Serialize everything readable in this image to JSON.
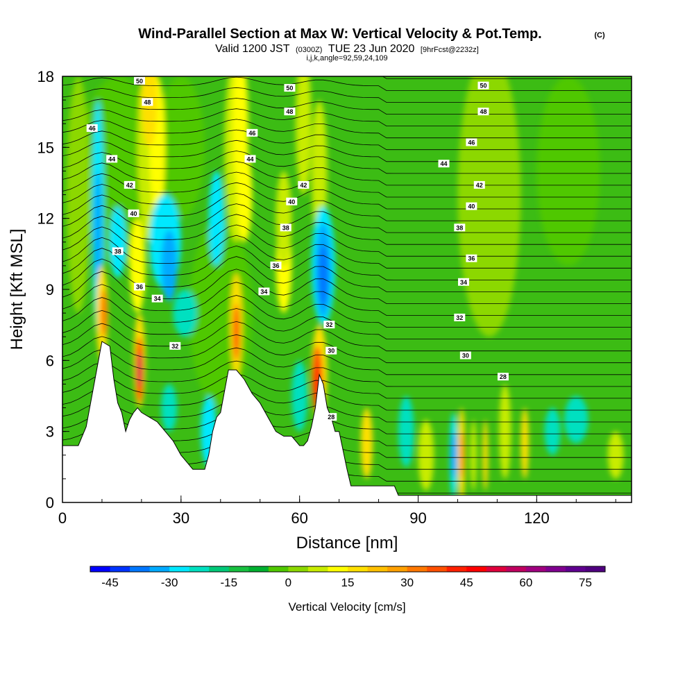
{
  "title": {
    "main": "Wind-Parallel Section at Max W: Vertical Velocity & Pot.Temp.",
    "copyright": "(C)",
    "valid_pre": "Valid 1200 JST",
    "valid_utc": "(0300Z)",
    "valid_post": "TUE 23 Jun 2020",
    "fcst": "[9hrFcst@2232z]",
    "indices": "i,j,k,angle=92,59,24,109"
  },
  "chart_data": {
    "type": "heatmap",
    "title": "Wind-Parallel Section at Max W: Vertical Velocity & Pot.Temp.",
    "xlabel": "Distance [nm]",
    "ylabel": "Height [Kft MSL]",
    "xlim": [
      0,
      144
    ],
    "ylim": [
      0,
      18
    ],
    "xticks": [
      0,
      30,
      60,
      90,
      120
    ],
    "yticks": [
      0,
      3,
      6,
      9,
      12,
      15,
      18
    ],
    "colorbar": {
      "label": "Vertical Velocity [cm/s]",
      "tick_labels": [
        "-45",
        "-30",
        "-15",
        "0",
        "15",
        "30",
        "45",
        "60",
        "75"
      ],
      "tick_values": [
        -45,
        -30,
        -15,
        0,
        15,
        30,
        45,
        60,
        75
      ],
      "range": [
        -50,
        80
      ],
      "colors": [
        "#0000ff",
        "#0033ff",
        "#0077ff",
        "#00aaff",
        "#00e8ff",
        "#00e0c0",
        "#00c878",
        "#18c040",
        "#00b030",
        "#50c800",
        "#8cd800",
        "#c8ec00",
        "#ffff00",
        "#ffe000",
        "#ffc000",
        "#ffa000",
        "#ff7800",
        "#ff5000",
        "#ff2000",
        "#ff0000",
        "#e0003c",
        "#c00060",
        "#a00080",
        "#800090",
        "#600090",
        "#500080"
      ]
    },
    "terrain": [
      [
        0,
        2.4
      ],
      [
        4,
        2.4
      ],
      [
        6,
        3.2
      ],
      [
        8,
        5.0
      ],
      [
        10,
        6.8
      ],
      [
        12,
        6.6
      ],
      [
        13,
        5.2
      ],
      [
        14,
        4.2
      ],
      [
        15,
        3.8
      ],
      [
        16,
        3.0
      ],
      [
        17,
        3.5
      ],
      [
        18,
        3.8
      ],
      [
        19,
        4.0
      ],
      [
        20,
        3.8
      ],
      [
        22,
        3.6
      ],
      [
        24,
        3.4
      ],
      [
        26,
        3.0
      ],
      [
        28,
        2.6
      ],
      [
        30,
        2.0
      ],
      [
        32,
        1.6
      ],
      [
        33,
        1.4
      ],
      [
        36,
        1.4
      ],
      [
        37,
        2.0
      ],
      [
        38,
        3.0
      ],
      [
        39,
        3.6
      ],
      [
        40,
        3.8
      ],
      [
        42,
        5.6
      ],
      [
        44,
        5.6
      ],
      [
        46,
        5.2
      ],
      [
        48,
        4.6
      ],
      [
        50,
        4.2
      ],
      [
        52,
        3.6
      ],
      [
        54,
        3.0
      ],
      [
        56,
        2.8
      ],
      [
        58,
        2.8
      ],
      [
        60,
        2.4
      ],
      [
        61,
        2.4
      ],
      [
        62,
        2.6
      ],
      [
        63,
        3.2
      ],
      [
        64,
        4.0
      ],
      [
        65,
        5.4
      ],
      [
        66,
        5.0
      ],
      [
        67,
        4.0
      ],
      [
        68,
        3.6
      ],
      [
        69,
        3.0
      ],
      [
        70,
        3.0
      ],
      [
        72,
        1.4
      ],
      [
        73,
        0.7
      ],
      [
        75,
        0.7
      ],
      [
        84,
        0.7
      ],
      [
        85,
        0.3
      ],
      [
        144,
        0.3
      ]
    ],
    "theta_labels": [
      {
        "text": "50",
        "x": 19.5,
        "y": 17.8
      },
      {
        "text": "50",
        "x": 57.5,
        "y": 17.5
      },
      {
        "text": "50",
        "x": 106.5,
        "y": 17.6
      },
      {
        "text": "48",
        "x": 21.5,
        "y": 16.9
      },
      {
        "text": "48",
        "x": 57.5,
        "y": 16.5
      },
      {
        "text": "48",
        "x": 106.5,
        "y": 16.5
      },
      {
        "text": "46",
        "x": 7.5,
        "y": 15.8
      },
      {
        "text": "46",
        "x": 48.0,
        "y": 15.6
      },
      {
        "text": "46",
        "x": 103.5,
        "y": 15.2
      },
      {
        "text": "44",
        "x": 12.5,
        "y": 14.5
      },
      {
        "text": "44",
        "x": 47.5,
        "y": 14.5
      },
      {
        "text": "44",
        "x": 96.5,
        "y": 14.3
      },
      {
        "text": "42",
        "x": 17.0,
        "y": 13.4
      },
      {
        "text": "42",
        "x": 61.0,
        "y": 13.4
      },
      {
        "text": "42",
        "x": 105.5,
        "y": 13.4
      },
      {
        "text": "40",
        "x": 18.0,
        "y": 12.2
      },
      {
        "text": "40",
        "x": 58.0,
        "y": 12.7
      },
      {
        "text": "40",
        "x": 103.5,
        "y": 12.5
      },
      {
        "text": "38",
        "x": 14.0,
        "y": 10.6
      },
      {
        "text": "38",
        "x": 56.5,
        "y": 11.6
      },
      {
        "text": "38",
        "x": 100.5,
        "y": 11.6
      },
      {
        "text": "36",
        "x": 19.5,
        "y": 9.1
      },
      {
        "text": "36",
        "x": 54.0,
        "y": 10.0
      },
      {
        "text": "36",
        "x": 103.5,
        "y": 10.3
      },
      {
        "text": "34",
        "x": 24.0,
        "y": 8.6
      },
      {
        "text": "34",
        "x": 51.0,
        "y": 8.9
      },
      {
        "text": "34",
        "x": 101.5,
        "y": 9.3
      },
      {
        "text": "32",
        "x": 28.5,
        "y": 6.6
      },
      {
        "text": "32",
        "x": 67.5,
        "y": 7.5
      },
      {
        "text": "32",
        "x": 100.5,
        "y": 7.8
      },
      {
        "text": "30",
        "x": 68.0,
        "y": 6.4
      },
      {
        "text": "30",
        "x": 102.0,
        "y": 6.2
      },
      {
        "text": "28",
        "x": 68.0,
        "y": 3.6
      },
      {
        "text": "28",
        "x": 111.5,
        "y": 5.3
      }
    ]
  }
}
